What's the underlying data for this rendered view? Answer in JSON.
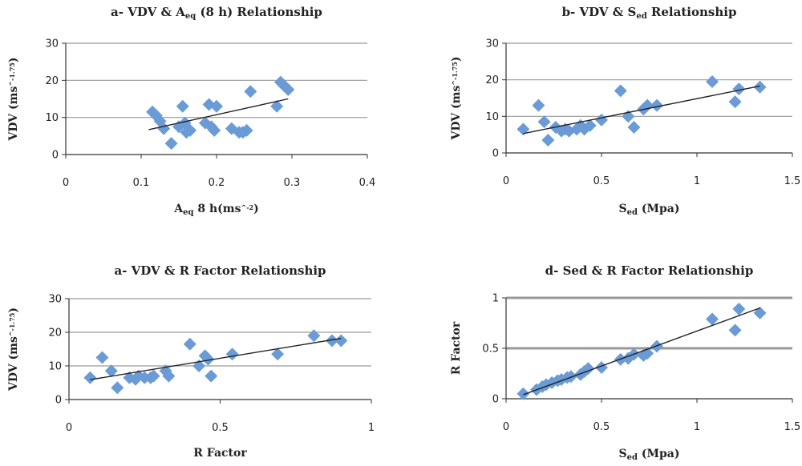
{
  "chart_data": [
    {
      "id": "a",
      "type": "scatter",
      "title_parts": [
        {
          "t": "a- VDV & A"
        },
        {
          "t": "eq",
          "role": "sub"
        },
        {
          "t": " (8 h) Relationship"
        }
      ],
      "ylabel_parts": [
        {
          "t": "VDV (ms"
        },
        {
          "t": "^-1.75",
          "role": "sup"
        },
        {
          "t": ")"
        }
      ],
      "xlabel_parts": [
        {
          "t": "A"
        },
        {
          "t": "eq",
          "role": "sub"
        },
        {
          "t": " 8 h(ms"
        },
        {
          "t": "^-2",
          "role": "sup"
        },
        {
          "t": ")"
        }
      ],
      "xlim": [
        0,
        0.4
      ],
      "ylim": [
        0,
        30
      ],
      "xticks": [
        "0",
        "0.1",
        "0.2",
        "0.3",
        "0.4"
      ],
      "yticks": [
        "0",
        "10",
        "20",
        "30"
      ],
      "gridlines": "horizontal",
      "marker_color": "#6B9BD6",
      "trend_color": "#222222",
      "points": [
        {
          "x": 0.115,
          "y": 11.5
        },
        {
          "x": 0.12,
          "y": 10.5
        },
        {
          "x": 0.125,
          "y": 9.0
        },
        {
          "x": 0.13,
          "y": 7.0
        },
        {
          "x": 0.14,
          "y": 3.0
        },
        {
          "x": 0.15,
          "y": 7.5
        },
        {
          "x": 0.155,
          "y": 13.0
        },
        {
          "x": 0.158,
          "y": 8.5
        },
        {
          "x": 0.16,
          "y": 6.0
        },
        {
          "x": 0.165,
          "y": 6.5
        },
        {
          "x": 0.185,
          "y": 8.5
        },
        {
          "x": 0.19,
          "y": 13.5
        },
        {
          "x": 0.193,
          "y": 7.5
        },
        {
          "x": 0.197,
          "y": 6.5
        },
        {
          "x": 0.2,
          "y": 13.0
        },
        {
          "x": 0.22,
          "y": 7.0
        },
        {
          "x": 0.23,
          "y": 6.0
        },
        {
          "x": 0.235,
          "y": 6.0
        },
        {
          "x": 0.24,
          "y": 6.5
        },
        {
          "x": 0.245,
          "y": 17.0
        },
        {
          "x": 0.28,
          "y": 13.0
        },
        {
          "x": 0.285,
          "y": 19.5
        },
        {
          "x": 0.29,
          "y": 18.5
        },
        {
          "x": 0.295,
          "y": 17.5
        }
      ],
      "trend": [
        {
          "x": 0.11,
          "y": 6.7
        },
        {
          "x": 0.295,
          "y": 15.0
        }
      ]
    },
    {
      "id": "b",
      "type": "scatter",
      "title_parts": [
        {
          "t": "b- VDV & S"
        },
        {
          "t": "ed",
          "role": "sub"
        },
        {
          "t": " Relationship"
        }
      ],
      "ylabel_parts": [
        {
          "t": "VDV (ms"
        },
        {
          "t": "^-1.75",
          "role": "sup"
        },
        {
          "t": ")"
        }
      ],
      "xlabel_parts": [
        {
          "t": "S"
        },
        {
          "t": "ed",
          "role": "sub"
        },
        {
          "t": " (Mpa)"
        }
      ],
      "xlim": [
        0,
        1.5
      ],
      "ylim": [
        0,
        30
      ],
      "xticks": [
        "0",
        "0.5",
        "1",
        "1.5"
      ],
      "yticks": [
        "0",
        "10",
        "20",
        "30"
      ],
      "gridlines": "horizontal",
      "marker_color": "#6B9BD6",
      "trend_color": "#222222",
      "points": [
        {
          "x": 0.09,
          "y": 6.5
        },
        {
          "x": 0.17,
          "y": 13.0
        },
        {
          "x": 0.2,
          "y": 8.5
        },
        {
          "x": 0.22,
          "y": 3.5
        },
        {
          "x": 0.26,
          "y": 7.0
        },
        {
          "x": 0.29,
          "y": 6.0
        },
        {
          "x": 0.31,
          "y": 6.5
        },
        {
          "x": 0.33,
          "y": 6.0
        },
        {
          "x": 0.37,
          "y": 6.5
        },
        {
          "x": 0.39,
          "y": 7.5
        },
        {
          "x": 0.41,
          "y": 6.5
        },
        {
          "x": 0.44,
          "y": 7.5
        },
        {
          "x": 0.5,
          "y": 9.0
        },
        {
          "x": 0.6,
          "y": 17.0
        },
        {
          "x": 0.64,
          "y": 10.0
        },
        {
          "x": 0.67,
          "y": 7.0
        },
        {
          "x": 0.72,
          "y": 12.0
        },
        {
          "x": 0.74,
          "y": 13.0
        },
        {
          "x": 0.79,
          "y": 13.0
        },
        {
          "x": 1.08,
          "y": 19.5
        },
        {
          "x": 1.2,
          "y": 14.0
        },
        {
          "x": 1.22,
          "y": 17.5
        },
        {
          "x": 1.33,
          "y": 18.0
        }
      ],
      "trend": [
        {
          "x": 0.09,
          "y": 5.3
        },
        {
          "x": 1.33,
          "y": 18.3
        }
      ]
    },
    {
      "id": "c",
      "type": "scatter",
      "title_parts": [
        {
          "t": "a- VDV & R Factor Relationship"
        }
      ],
      "ylabel_parts": [
        {
          "t": "VDV (ms"
        },
        {
          "t": "^-1.75",
          "role": "sup"
        },
        {
          "t": ")"
        }
      ],
      "xlabel_parts": [
        {
          "t": "R Factor"
        }
      ],
      "xlim": [
        0,
        1
      ],
      "ylim": [
        0,
        30
      ],
      "xticks": [
        "0",
        "0.5",
        "1"
      ],
      "yticks": [
        "0",
        "10",
        "20",
        "30"
      ],
      "gridlines": "horizontal",
      "marker_color": "#6B9BD6",
      "trend_color": "#222222",
      "points": [
        {
          "x": 0.07,
          "y": 6.5
        },
        {
          "x": 0.11,
          "y": 12.5
        },
        {
          "x": 0.14,
          "y": 8.5
        },
        {
          "x": 0.16,
          "y": 3.5
        },
        {
          "x": 0.2,
          "y": 6.5
        },
        {
          "x": 0.22,
          "y": 6.0
        },
        {
          "x": 0.23,
          "y": 7.0
        },
        {
          "x": 0.25,
          "y": 6.5
        },
        {
          "x": 0.27,
          "y": 6.5
        },
        {
          "x": 0.28,
          "y": 7.0
        },
        {
          "x": 0.32,
          "y": 8.5
        },
        {
          "x": 0.33,
          "y": 7.0
        },
        {
          "x": 0.4,
          "y": 16.5
        },
        {
          "x": 0.43,
          "y": 10.0
        },
        {
          "x": 0.45,
          "y": 13.0
        },
        {
          "x": 0.46,
          "y": 12.0
        },
        {
          "x": 0.47,
          "y": 7.0
        },
        {
          "x": 0.54,
          "y": 13.5
        },
        {
          "x": 0.69,
          "y": 13.5
        },
        {
          "x": 0.81,
          "y": 19.0
        },
        {
          "x": 0.87,
          "y": 17.5
        },
        {
          "x": 0.9,
          "y": 17.5
        }
      ],
      "trend": [
        {
          "x": 0.07,
          "y": 5.9
        },
        {
          "x": 0.9,
          "y": 18.2
        }
      ]
    },
    {
      "id": "d",
      "type": "scatter",
      "title_parts": [
        {
          "t": "d- Sed & R Factor Relationship"
        }
      ],
      "ylabel_parts": [
        {
          "t": "R Factor"
        }
      ],
      "xlabel_parts": [
        {
          "t": "S"
        },
        {
          "t": "ed",
          "role": "sub"
        },
        {
          "t": " (Mpa)"
        }
      ],
      "xlim": [
        0,
        1.5
      ],
      "ylim": [
        0,
        1
      ],
      "xticks": [
        "0",
        "0.5",
        "1",
        "1.5"
      ],
      "yticks": [
        "0",
        "0.5",
        "1"
      ],
      "gridlines": "horizontal",
      "marker_color": "#6B9BD6",
      "trend_color": "#222222",
      "points": [
        {
          "x": 0.09,
          "y": 0.05
        },
        {
          "x": 0.16,
          "y": 0.09
        },
        {
          "x": 0.19,
          "y": 0.12
        },
        {
          "x": 0.21,
          "y": 0.14
        },
        {
          "x": 0.24,
          "y": 0.16
        },
        {
          "x": 0.27,
          "y": 0.18
        },
        {
          "x": 0.29,
          "y": 0.19
        },
        {
          "x": 0.32,
          "y": 0.21
        },
        {
          "x": 0.34,
          "y": 0.22
        },
        {
          "x": 0.39,
          "y": 0.24
        },
        {
          "x": 0.41,
          "y": 0.27
        },
        {
          "x": 0.43,
          "y": 0.3
        },
        {
          "x": 0.5,
          "y": 0.31
        },
        {
          "x": 0.6,
          "y": 0.39
        },
        {
          "x": 0.64,
          "y": 0.4
        },
        {
          "x": 0.67,
          "y": 0.44
        },
        {
          "x": 0.72,
          "y": 0.43
        },
        {
          "x": 0.74,
          "y": 0.45
        },
        {
          "x": 0.79,
          "y": 0.52
        },
        {
          "x": 1.08,
          "y": 0.79
        },
        {
          "x": 1.2,
          "y": 0.68
        },
        {
          "x": 1.22,
          "y": 0.89
        },
        {
          "x": 1.33,
          "y": 0.85
        }
      ],
      "trend": [
        {
          "x": 0.09,
          "y": 0.04
        },
        {
          "x": 1.33,
          "y": 0.9
        }
      ]
    }
  ]
}
